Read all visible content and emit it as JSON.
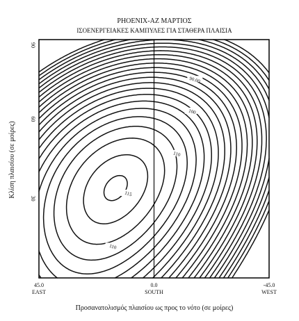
{
  "chart_data": {
    "type": "contour",
    "title": "PHOENIX-AZ ΜΑΡΤΙΟΣ",
    "subtitle": "ΙΣΟΕΝΕΡΓΕΙΑΚΕΣ ΚΑΜΠΥΛΕΣ ΓΙΑ ΣΤΑΘΕΡΑ ΠΛΑΙΣΙΑ",
    "xlabel": "Προσανατολισμός πλαισίου ως προς το νότο (σε μοίρες)",
    "ylabel": "Κλίση πλαισίου (σε μοίρες)",
    "xlim": [
      45,
      -45
    ],
    "ylim": [
      0,
      90
    ],
    "x_ticks": [
      {
        "value": 45,
        "label": "45.0",
        "sublabel": "EAST"
      },
      {
        "value": 0,
        "label": "0.0",
        "sublabel": "SOUTH"
      },
      {
        "value": -45,
        "label": "-45.0",
        "sublabel": "WEST"
      }
    ],
    "y_ticks": [
      {
        "value": 90,
        "label": "90"
      },
      {
        "value": 60,
        "label": "60"
      },
      {
        "value": 30,
        "label": "30"
      }
    ],
    "reference_lines": [
      {
        "axis": "x",
        "value": 0
      }
    ],
    "maximum": {
      "x": 15,
      "y": 34,
      "label": "115"
    },
    "contour_levels": [
      115,
      110,
      100,
      90.0,
      80.0
    ],
    "contour_labels": [
      {
        "text": "115",
        "x": 10,
        "y": 32
      },
      {
        "text": "110",
        "x": -9,
        "y": 47
      },
      {
        "text": "110",
        "x": 16,
        "y": 12
      },
      {
        "text": "100",
        "x": -15,
        "y": 63
      },
      {
        "text": "90.00",
        "x": -16,
        "y": 75
      }
    ]
  }
}
